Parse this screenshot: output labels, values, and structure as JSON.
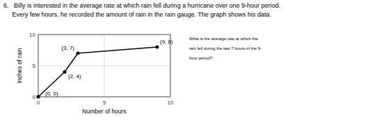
{
  "chart_data": {
    "type": "line",
    "title": "6.   Billy is interested in the average rate at which rain fell during a hurricane over one 9-hour period.",
    "subtitle": "     Every few hours, he recorded the amount of rain in the rain gauge. The graph shows his data.",
    "annotations": [
      "What is the average rate at which the\nrain fell during the last 7 hours of the 9-\nhour period?"
    ],
    "x_label": "Number of hours",
    "y_label": "Inches of rain",
    "x": [
      0,
      2,
      3,
      9
    ],
    "values": [
      0,
      4,
      7,
      8
    ],
    "value_labels": [
      "(0, 0)",
      "(2, 4)",
      "(3, 7)",
      "(9, 8)"
    ],
    "data_labels": true,
    "color": "#000000",
    "marker": "circle",
    "xlim": [
      0,
      10
    ],
    "ylim": [
      0,
      10
    ],
    "xticks": [
      0,
      5,
      10
    ],
    "yticks": [
      0,
      5,
      10
    ],
    "grid": true
  }
}
